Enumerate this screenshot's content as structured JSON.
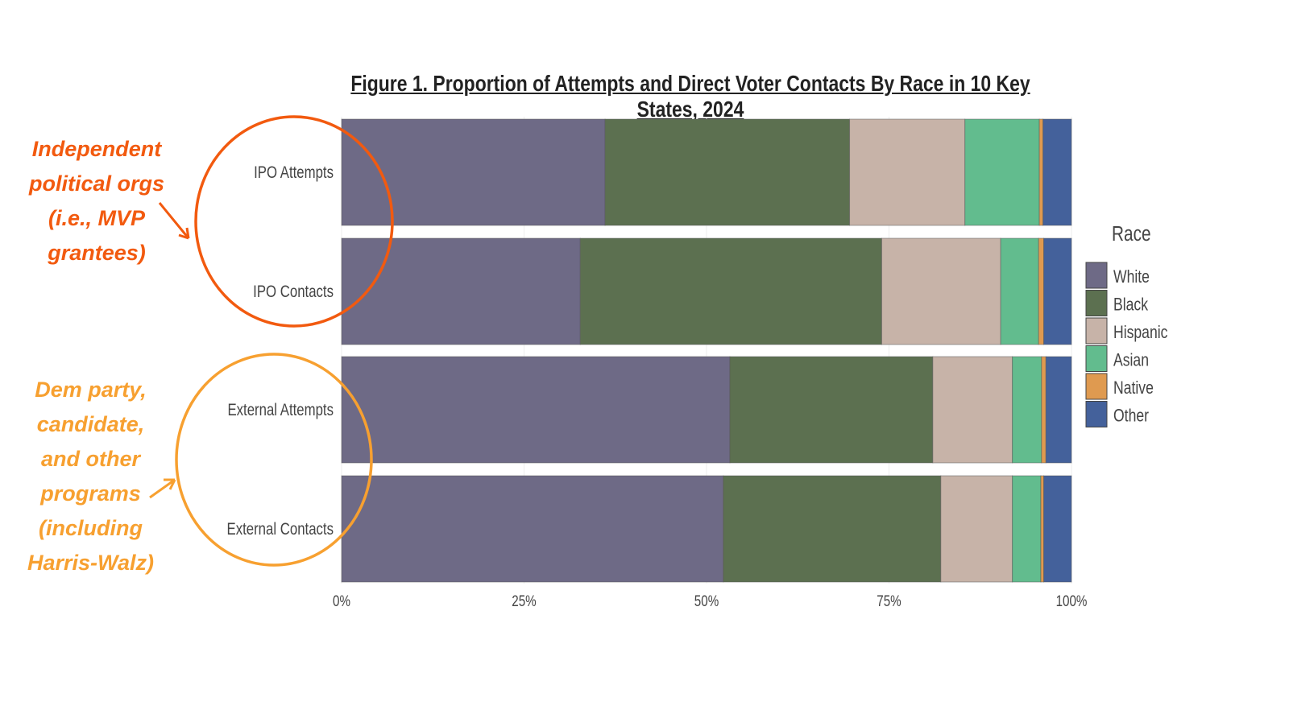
{
  "chart_data": {
    "type": "bar",
    "orientation": "horizontal",
    "stacked": true,
    "title": "Figure 1. Proportion of Attempts and Direct Voter Contacts By Race in 10 Key States, 2024",
    "categories": [
      "IPO Attempts",
      "IPO Contacts",
      "External Attempts",
      "External Contacts"
    ],
    "series": [
      {
        "name": "White",
        "color": "#6e6a86",
        "values": [
          36.1,
          32.7,
          53.2,
          52.3
        ]
      },
      {
        "name": "Black",
        "color": "#5c7050",
        "values": [
          33.5,
          41.3,
          27.8,
          29.8
        ]
      },
      {
        "name": "Hispanic",
        "color": "#c7b3a8",
        "values": [
          15.8,
          16.3,
          10.9,
          9.8
        ]
      },
      {
        "name": "Asian",
        "color": "#62bc8e",
        "values": [
          10.2,
          5.2,
          4.0,
          3.9
        ]
      },
      {
        "name": "Native",
        "color": "#df9a50",
        "values": [
          0.5,
          0.7,
          0.6,
          0.4
        ]
      },
      {
        "name": "Other",
        "color": "#44619b",
        "values": [
          3.9,
          3.8,
          3.5,
          3.8
        ]
      }
    ],
    "xlim": [
      0,
      100
    ],
    "xticks": [
      "0%",
      "25%",
      "50%",
      "75%",
      "100%"
    ],
    "legend_title": "Race",
    "legend_position": "right",
    "grid": true
  },
  "annotations": [
    {
      "text": "Independent political orgs (i.e., MVP grantees)",
      "lines": [
        "Independent",
        "political orgs",
        "(i.e., MVP",
        "grantees)"
      ],
      "color": "#f25a0f"
    },
    {
      "text": "Dem party, candidate, and other programs (including Harris-Walz)",
      "lines": [
        "Dem party,",
        "candidate,",
        "and other",
        "programs",
        "(including",
        "Harris-Walz)"
      ],
      "color": "#f7a030"
    }
  ]
}
